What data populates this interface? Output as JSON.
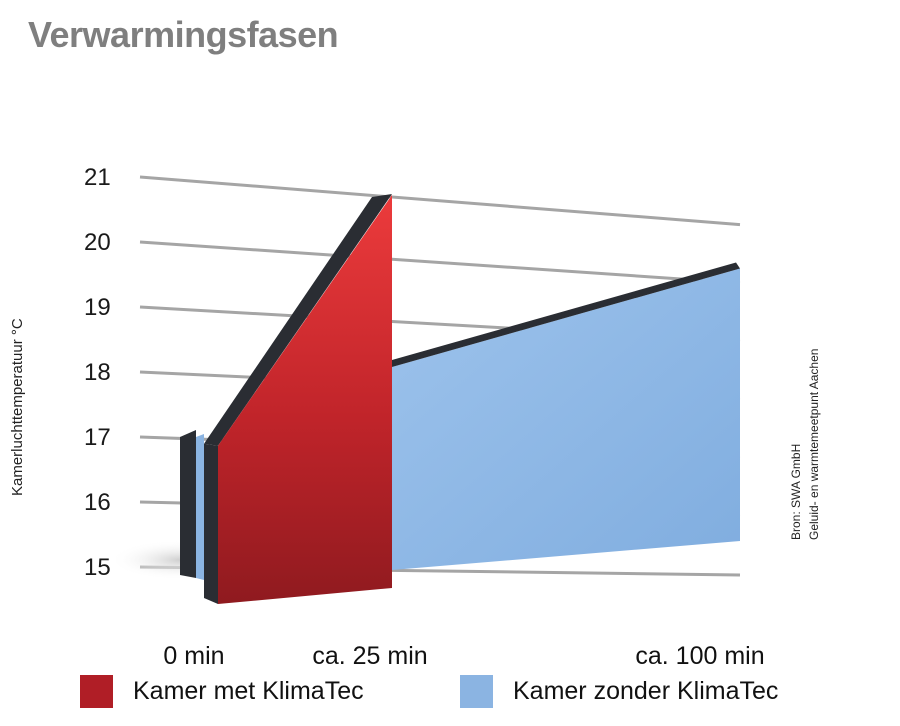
{
  "title": "Verwarmingsfasen",
  "source": [
    "Bron: SWA GmbH",
    "Geluid- en warmtemeetpunt Aachen"
  ],
  "colors": {
    "with": "#b01e26",
    "with_top": "#e83a3a",
    "without": "#8bb4e2",
    "edge": "#2a2d33",
    "grid": "#a5a5a5"
  },
  "chart_data": {
    "type": "area",
    "title": "Verwarmingsfasen",
    "ylabel": "Kamerluchttemperatuur °C",
    "xlabel": "",
    "y_ticks": [
      "15",
      "16",
      "17",
      "18",
      "19",
      "20",
      "21"
    ],
    "ylim": [
      15,
      21
    ],
    "x_categories": [
      "0 min",
      "ca. 25 min",
      "ca. 100 min"
    ],
    "grid": true,
    "legend": "bottom",
    "series": [
      {
        "name": "Kamer met KlimaTec",
        "x": [
          0,
          25
        ],
        "y": [
          17,
          21
        ]
      },
      {
        "name": "Kamer zonder KlimaTec",
        "x": [
          0,
          25,
          100
        ],
        "y": [
          17,
          18.3,
          20.3
        ]
      }
    ]
  }
}
